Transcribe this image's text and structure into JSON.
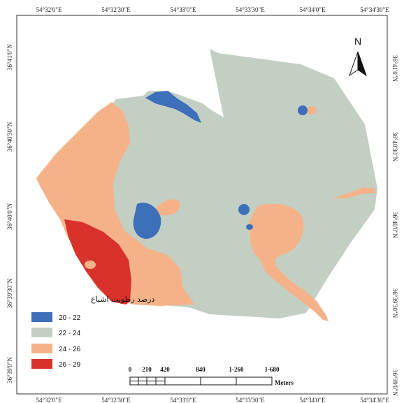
{
  "map": {
    "legend_title": "درصد رطوبت اشباع",
    "legend": [
      {
        "label": "20 - 22",
        "color": "#3d6fba"
      },
      {
        "label": "22 - 24",
        "color": "#c3cfc3"
      },
      {
        "label": "24 - 26",
        "color": "#f5b288"
      },
      {
        "label": "26 - 29",
        "color": "#d8322a"
      }
    ],
    "top_ticks": [
      "54°32'0\"E",
      "54°32'30\"E",
      "54°33'0\"E",
      "54°33'30\"E",
      "54°34'0\"E",
      "54°34'30\"E"
    ],
    "bottom_ticks": [
      "54°32'0\"E",
      "54°32'30\"E",
      "54°33'0\"E",
      "54°33'30\"E",
      "54°34'0\"E",
      "54°34'30\"E"
    ],
    "left_ticks": [
      "36°41'0\"N",
      "36°40'30\"N",
      "36°40'0\"N",
      "36°39'30\"N",
      "36°39'0\"N"
    ],
    "right_ticks": [
      "36°41'0\"N",
      "36°40'30\"N",
      "36°40'0\"N",
      "36°39'30\"N",
      "36°39'0\"N"
    ],
    "north_label": "N",
    "scale_values": [
      "0",
      "210",
      "420",
      "840",
      "1-260",
      "1-680"
    ],
    "scale_unit": "Meters"
  }
}
